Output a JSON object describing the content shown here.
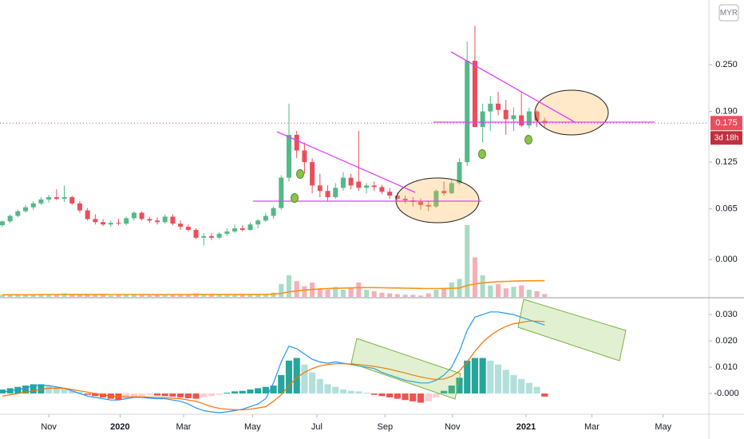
{
  "chart_data": {
    "type": "candlestick",
    "currency": "MYR",
    "last_price": 0.175,
    "countdown": "3d 18h",
    "xlim": [
      -0.3,
      91.2
    ],
    "xticks": [
      {
        "value": 6,
        "label": "Nov"
      },
      {
        "value": 15.2,
        "label": "2020"
      },
      {
        "value": 23.4,
        "label": "Mar"
      },
      {
        "value": 32.3,
        "label": "May"
      },
      {
        "value": 40.6,
        "label": "Jul"
      },
      {
        "value": 49.4,
        "label": "Sep"
      },
      {
        "value": 58.1,
        "label": "Nov"
      },
      {
        "value": 67.6,
        "label": "2021"
      },
      {
        "value": 76.1,
        "label": "Mar"
      },
      {
        "value": 85.3,
        "label": "May"
      }
    ],
    "ylim": [
      -0.048,
      0.333
    ],
    "yticks": [
      {
        "value": 0.25,
        "label": "0.250"
      },
      {
        "value": 0.19,
        "label": "0.190"
      },
      0.125,
      0.065,
      {
        "value": 0,
        "label": "0.000"
      }
    ],
    "up_color": "#53b987",
    "down_color": "#eb4d5c",
    "candles": [
      [
        0.044,
        0.05,
        0.042,
        0.049
      ],
      [
        0.049,
        0.058,
        0.047,
        0.056
      ],
      [
        0.056,
        0.064,
        0.054,
        0.062
      ],
      [
        0.062,
        0.07,
        0.06,
        0.067
      ],
      [
        0.067,
        0.075,
        0.064,
        0.072
      ],
      [
        0.072,
        0.08,
        0.07,
        0.077
      ],
      [
        0.077,
        0.083,
        0.073,
        0.08
      ],
      [
        0.08,
        0.09,
        0.076,
        0.078
      ],
      [
        0.078,
        0.095,
        0.074,
        0.08
      ],
      [
        0.08,
        0.082,
        0.07,
        0.072
      ],
      [
        0.072,
        0.075,
        0.06,
        0.063
      ],
      [
        0.063,
        0.066,
        0.05,
        0.052
      ],
      [
        0.052,
        0.058,
        0.045,
        0.048
      ],
      [
        0.048,
        0.052,
        0.043,
        0.045
      ],
      [
        0.045,
        0.05,
        0.042,
        0.047
      ],
      [
        0.047,
        0.052,
        0.044,
        0.046
      ],
      [
        0.046,
        0.055,
        0.044,
        0.053
      ],
      [
        0.053,
        0.062,
        0.05,
        0.06
      ],
      [
        0.06,
        0.062,
        0.05,
        0.052
      ],
      [
        0.052,
        0.055,
        0.047,
        0.05
      ],
      [
        0.05,
        0.054,
        0.045,
        0.048
      ],
      [
        0.048,
        0.058,
        0.046,
        0.055
      ],
      [
        0.055,
        0.058,
        0.044,
        0.046
      ],
      [
        0.046,
        0.05,
        0.038,
        0.042
      ],
      [
        0.042,
        0.045,
        0.036,
        0.038
      ],
      [
        0.038,
        0.04,
        0.026,
        0.028
      ],
      [
        0.028,
        0.034,
        0.018,
        0.03
      ],
      [
        0.03,
        0.034,
        0.025,
        0.028
      ],
      [
        0.028,
        0.035,
        0.026,
        0.033
      ],
      [
        0.033,
        0.04,
        0.03,
        0.036
      ],
      [
        0.036,
        0.045,
        0.034,
        0.04
      ],
      [
        0.04,
        0.044,
        0.036,
        0.038
      ],
      [
        0.038,
        0.048,
        0.037,
        0.045
      ],
      [
        0.045,
        0.052,
        0.04,
        0.05
      ],
      [
        0.05,
        0.06,
        0.048,
        0.056
      ],
      [
        0.056,
        0.068,
        0.052,
        0.066
      ],
      [
        0.066,
        0.108,
        0.064,
        0.105
      ],
      [
        0.105,
        0.2,
        0.1,
        0.16
      ],
      [
        0.16,
        0.165,
        0.13,
        0.14
      ],
      [
        0.14,
        0.15,
        0.11,
        0.125
      ],
      [
        0.125,
        0.13,
        0.085,
        0.095
      ],
      [
        0.095,
        0.11,
        0.08,
        0.088
      ],
      [
        0.088,
        0.095,
        0.075,
        0.08
      ],
      [
        0.08,
        0.098,
        0.078,
        0.092
      ],
      [
        0.092,
        0.112,
        0.088,
        0.105
      ],
      [
        0.105,
        0.11,
        0.09,
        0.095
      ],
      [
        0.1,
        0.165,
        0.088,
        0.092
      ],
      [
        0.092,
        0.098,
        0.085,
        0.095
      ],
      [
        0.095,
        0.1,
        0.088,
        0.093
      ],
      [
        0.093,
        0.096,
        0.084,
        0.087
      ],
      [
        0.087,
        0.092,
        0.078,
        0.082
      ],
      [
        0.082,
        0.086,
        0.074,
        0.078
      ],
      [
        0.078,
        0.082,
        0.072,
        0.076
      ],
      [
        0.076,
        0.08,
        0.068,
        0.074
      ],
      [
        0.074,
        0.078,
        0.064,
        0.07
      ],
      [
        0.07,
        0.075,
        0.062,
        0.068
      ],
      [
        0.068,
        0.09,
        0.066,
        0.088
      ],
      [
        0.088,
        0.1,
        0.082,
        0.085
      ],
      [
        0.085,
        0.102,
        0.084,
        0.098
      ],
      [
        0.098,
        0.13,
        0.096,
        0.125
      ],
      [
        0.125,
        0.28,
        0.12,
        0.255
      ],
      [
        0.255,
        0.3,
        0.17,
        0.17
      ],
      [
        0.17,
        0.2,
        0.15,
        0.19
      ],
      [
        0.19,
        0.21,
        0.165,
        0.2
      ],
      [
        0.2,
        0.215,
        0.185,
        0.192
      ],
      [
        0.192,
        0.205,
        0.16,
        0.18
      ],
      [
        0.18,
        0.195,
        0.165,
        0.185
      ],
      [
        0.185,
        0.215,
        0.17,
        0.172
      ],
      [
        0.172,
        0.195,
        0.168,
        0.19
      ],
      [
        0.19,
        0.192,
        0.17,
        0.178
      ],
      [
        0.178,
        0.182,
        0.17,
        0.175
      ]
    ],
    "volume": [
      3,
      3,
      4,
      3,
      4,
      3,
      4,
      3,
      5,
      3,
      4,
      4,
      3,
      3,
      2,
      3,
      3,
      4,
      3,
      2,
      3,
      3,
      4,
      3,
      4,
      5,
      4,
      3,
      3,
      3,
      3,
      3,
      4,
      3,
      4,
      6,
      18,
      30,
      22,
      15,
      20,
      12,
      10,
      14,
      10,
      12,
      20,
      10,
      8,
      6,
      5,
      4,
      3,
      3,
      2,
      5,
      10,
      12,
      20,
      25,
      100,
      55,
      30,
      16,
      18,
      12,
      14,
      16,
      10,
      8,
      4
    ],
    "volume_ma": [
      3,
      3,
      3,
      3,
      3,
      3.2,
      3.3,
      3.3,
      3.4,
      3.4,
      3.4,
      3.5,
      3.5,
      3.4,
      3.3,
      3.3,
      3.3,
      3.3,
      3.3,
      3.2,
      3.2,
      3.2,
      3.3,
      3.3,
      3.3,
      3.4,
      3.4,
      3.4,
      3.4,
      3.4,
      3.4,
      3.4,
      3.5,
      3.5,
      3.6,
      4,
      5,
      7,
      8.5,
      9.5,
      10.5,
      11,
      11.5,
      12,
      12.3,
      12.6,
      13,
      13,
      13,
      12.8,
      12.6,
      12.4,
      12.2,
      12,
      11.8,
      11.7,
      11.7,
      11.8,
      12,
      12.5,
      16,
      18,
      19.5,
      20.5,
      21.2,
      21.6,
      22,
      22.3,
      22.5,
      22.6,
      22.6
    ],
    "volume_colors": [
      "rgba(83,185,135,0.5)",
      "rgba(235,77,92,0.45)"
    ],
    "volume_ma_color": "#f7931a",
    "macd": {
      "ylim": [
        -0.0076,
        0.0358
      ],
      "yticks": [
        {
          "value": 0.03,
          "label": "0.030"
        },
        {
          "value": 0.02,
          "label": "0.020"
        },
        {
          "value": 0.01,
          "label": "0.010"
        },
        {
          "value": 0,
          "label": "-0.000"
        }
      ],
      "histogram_colors": [
        "#26a69a",
        "#b2dfdb",
        "#ef5350",
        "#ffcdd2"
      ],
      "macd_color": "#2196f3",
      "signal_color": "#ff6d00",
      "histogram": [
        0.0015,
        0.002,
        0.0025,
        0.003,
        0.0035,
        0.0035,
        0.003,
        0.0025,
        0.002,
        0.001,
        0.0005,
        -0.0005,
        -0.001,
        -0.0015,
        -0.002,
        -0.0025,
        -0.002,
        -0.0015,
        -0.001,
        -0.0005,
        -0.0008,
        -0.001,
        -0.0012,
        -0.0015,
        -0.0018,
        -0.002,
        -0.0015,
        -0.001,
        -0.0005,
        0.0003,
        0.0008,
        0.001,
        0.0015,
        0.002,
        0.0025,
        0.003,
        0.007,
        0.0125,
        0.0135,
        0.011,
        0.008,
        0.0055,
        0.0035,
        0.0025,
        0.0015,
        0.001,
        0.0008,
        0.0003,
        -0.0005,
        -0.001,
        -0.0015,
        -0.002,
        -0.0025,
        -0.003,
        -0.0035,
        -0.003,
        -0.0015,
        0.001,
        0.003,
        0.006,
        0.0125,
        0.0135,
        0.0135,
        0.0125,
        0.011,
        0.009,
        0.007,
        0.0055,
        0.004,
        0.0025,
        -0.0012
      ],
      "macd": [
        0.0005,
        0.001,
        0.0015,
        0.002,
        0.003,
        0.0032,
        0.003,
        0.0025,
        0.002,
        0.001,
        0,
        -0.001,
        -0.0015,
        -0.002,
        -0.0025,
        -0.0025,
        -0.002,
        -0.0015,
        -0.0015,
        -0.0018,
        -0.002,
        -0.002,
        -0.0025,
        -0.003,
        -0.004,
        -0.0055,
        -0.0065,
        -0.007,
        -0.0073,
        -0.007,
        -0.0065,
        -0.006,
        -0.005,
        -0.004,
        -0.002,
        0.004,
        0.012,
        0.018,
        0.017,
        0.015,
        0.013,
        0.012,
        0.0115,
        0.012,
        0.0115,
        0.011,
        0.0105,
        0.01,
        0.0095,
        0.008,
        0.007,
        0.006,
        0.005,
        0.0045,
        0.004,
        0.004,
        0.005,
        0.007,
        0.01,
        0.016,
        0.024,
        0.029,
        0.03,
        0.031,
        0.031,
        0.0305,
        0.03,
        0.029,
        0.028,
        0.027,
        0.026
      ],
      "signal": [
        -0.001,
        -0.0005,
        0,
        0.0005,
        0.001,
        0.0015,
        0.002,
        0.002,
        0.002,
        0.0015,
        0.001,
        0.0005,
        0,
        -0.0005,
        -0.001,
        -0.0012,
        -0.0013,
        -0.0013,
        -0.0013,
        -0.0014,
        -0.0015,
        -0.0016,
        -0.0018,
        -0.002,
        -0.0025,
        -0.003,
        -0.004,
        -0.005,
        -0.0057,
        -0.006,
        -0.0062,
        -0.0062,
        -0.006,
        -0.0055,
        -0.005,
        -0.003,
        -0.0005,
        0.003,
        0.006,
        0.008,
        0.0095,
        0.0105,
        0.011,
        0.0113,
        0.0113,
        0.0112,
        0.011,
        0.0107,
        0.0103,
        0.0098,
        0.0092,
        0.0085,
        0.0078,
        0.007,
        0.0063,
        0.0057,
        0.0053,
        0.0055,
        0.0065,
        0.0085,
        0.012,
        0.016,
        0.0195,
        0.022,
        0.024,
        0.0255,
        0.0265,
        0.027,
        0.0275,
        0.0275,
        0.0273
      ]
    }
  }
}
